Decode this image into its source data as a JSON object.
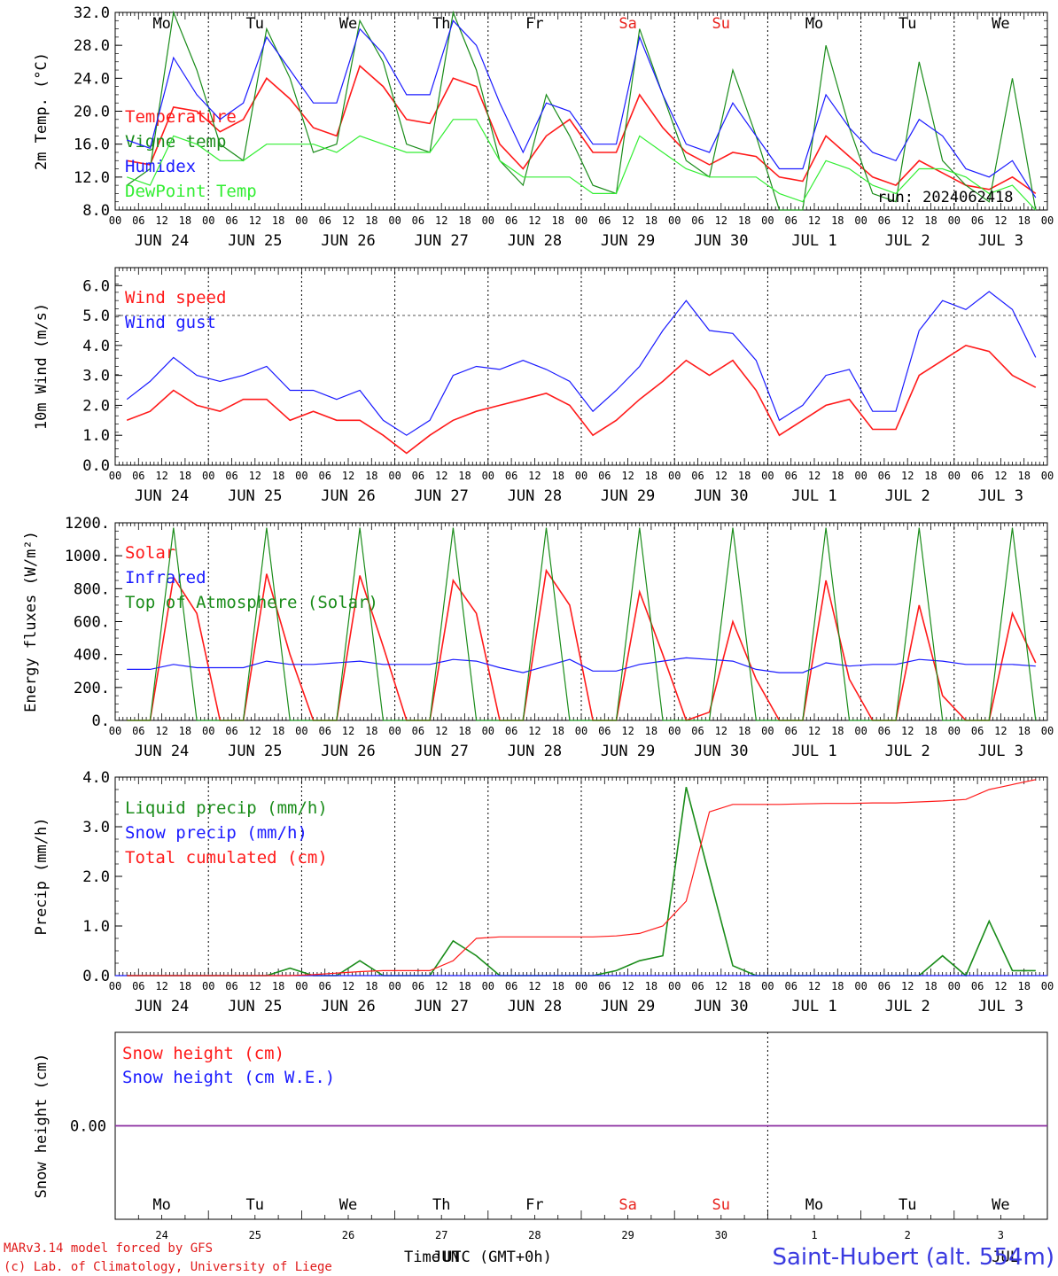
{
  "hour_ticks": [
    "00",
    "06",
    "12",
    "18"
  ],
  "dates": [
    "JUN 24",
    "JUN 25",
    "JUN 26",
    "JUN 27",
    "JUN 28",
    "JUN 29",
    "JUN 30",
    "JUL  1",
    "JUL  2",
    "JUL  3"
  ],
  "weekdays": [
    "Mo",
    "Tu",
    "We",
    "Th",
    "Fr",
    "Sa",
    "Su",
    "Mo",
    "Tu",
    "We"
  ],
  "weekend_color": "#e8231e",
  "bottom_day_numbers": [
    "24",
    "25",
    "26",
    "27",
    "28",
    "29",
    "30",
    "1",
    "2",
    "3"
  ],
  "bottom_month_labels": [
    "JUN",
    "JUL"
  ],
  "run_label": "run: 2024062418",
  "colors": {
    "red": "#ff1a1a",
    "darkgreen": "#1a8c1a",
    "blue": "#1a1aff",
    "lightgreen": "#33ee33",
    "purple": "#8a2ca0"
  },
  "footer": {
    "model": "MARv3.14 model forced by GFS",
    "lab": "(c) Lab. of Climatology, University of Liege",
    "xlabel_time": "Time",
    "xlabel_utc": "UTC (GMT+0h)",
    "station": "Saint-Hubert (alt. 554m)"
  },
  "chart_data": [
    {
      "type": "line",
      "ylabel": "2m Temp. (°C)",
      "ylim": [
        8,
        32
      ],
      "yticks": [
        "8.0",
        "12.0",
        "16.0",
        "20.0",
        "24.0",
        "28.0",
        "32.0"
      ],
      "x": "hours since JUN 24 00 UTC, step 6",
      "series": [
        {
          "name": "Temperature",
          "color": "red",
          "values": [
            14,
            13.5,
            20.5,
            20,
            17.5,
            19,
            24,
            21.5,
            18,
            17,
            25.5,
            23,
            19,
            18.5,
            24,
            23,
            16,
            13,
            17,
            19,
            15,
            15,
            22,
            18,
            15,
            13.5,
            15,
            14.5,
            12,
            11.5,
            17,
            14.5,
            12,
            11,
            14,
            12.5,
            11,
            10.5,
            12,
            10
          ]
        },
        {
          "name": "Vigne temp",
          "color": "darkgreen",
          "values": [
            11,
            13,
            32,
            25,
            16,
            14,
            30,
            24,
            15,
            16,
            31,
            26,
            16,
            15,
            32,
            25,
            14,
            11,
            22,
            17,
            11,
            10,
            30,
            22,
            14,
            12,
            25,
            17,
            8,
            8,
            28,
            18,
            10,
            9,
            26,
            14,
            11,
            9,
            24,
            8
          ]
        },
        {
          "name": "Humidex",
          "color": "blue",
          "values": [
            16.5,
            15.5,
            26.5,
            22,
            19,
            21,
            29,
            25,
            21,
            21,
            30,
            27,
            22,
            22,
            31,
            28,
            21,
            15,
            21,
            20,
            16,
            16,
            29,
            22,
            16,
            15,
            21,
            17,
            13,
            13,
            22,
            18,
            15,
            14,
            19,
            17,
            13,
            12,
            14,
            9.5
          ]
        },
        {
          "name": "DewPoint Temp",
          "color": "lightgreen",
          "values": [
            12,
            11,
            17,
            16,
            14,
            14,
            16,
            16,
            16,
            15,
            17,
            16,
            15,
            15,
            19,
            19,
            14,
            12,
            12,
            12,
            10,
            10,
            17,
            15,
            13,
            12,
            12,
            12,
            10,
            9,
            14,
            13,
            11,
            10,
            13,
            13,
            12,
            10,
            11,
            8
          ]
        }
      ]
    },
    {
      "type": "line",
      "ylabel": "10m Wind (m/s)",
      "ylim": [
        0,
        6.6
      ],
      "yticks": [
        "0.0",
        "1.0",
        "2.0",
        "3.0",
        "4.0",
        "5.0",
        "6.0"
      ],
      "series": [
        {
          "name": "Wind speed",
          "color": "red",
          "values": [
            1.5,
            1.8,
            2.5,
            2,
            1.8,
            2.2,
            2.2,
            1.5,
            1.8,
            1.5,
            1.5,
            1,
            0.4,
            1,
            1.5,
            1.8,
            2,
            2.2,
            2.4,
            2,
            1,
            1.5,
            2.2,
            2.8,
            3.5,
            3,
            3.5,
            2.5,
            1,
            1.5,
            2,
            2.2,
            1.2,
            1.2,
            3,
            3.5,
            4,
            3.8,
            3,
            2.6
          ]
        },
        {
          "name": "Wind gust",
          "color": "blue",
          "values": [
            2.2,
            2.8,
            3.6,
            3,
            2.8,
            3,
            3.3,
            2.5,
            2.5,
            2.2,
            2.5,
            1.5,
            1,
            1.5,
            3,
            3.3,
            3.2,
            3.5,
            3.2,
            2.8,
            1.8,
            2.5,
            3.3,
            4.5,
            5.5,
            4.5,
            4.4,
            3.5,
            1.5,
            2,
            3,
            3.2,
            1.8,
            1.8,
            4.5,
            5.5,
            5.2,
            5.8,
            5.2,
            3.6
          ]
        }
      ]
    },
    {
      "type": "line",
      "ylabel": "Energy fluxes (W/m²)",
      "ylim": [
        0,
        1200
      ],
      "yticks": [
        "0.",
        "200.",
        "400.",
        "600.",
        "800.",
        "1000.",
        "1200."
      ],
      "series": [
        {
          "name": "Solar",
          "color": "red",
          "values": [
            0,
            0,
            870,
            650,
            0,
            0,
            890,
            400,
            0,
            0,
            880,
            450,
            0,
            0,
            850,
            650,
            0,
            0,
            910,
            700,
            0,
            0,
            780,
            400,
            0,
            50,
            600,
            250,
            0,
            0,
            850,
            250,
            0,
            0,
            700,
            150,
            0,
            0,
            650,
            350
          ]
        },
        {
          "name": "Infrared",
          "color": "blue",
          "values": [
            310,
            310,
            340,
            320,
            320,
            320,
            360,
            340,
            340,
            350,
            360,
            340,
            340,
            340,
            370,
            360,
            320,
            290,
            330,
            370,
            300,
            300,
            340,
            360,
            380,
            370,
            360,
            310,
            290,
            290,
            350,
            330,
            340,
            340,
            370,
            360,
            340,
            340,
            340,
            330
          ]
        },
        {
          "name": "Top of Atmosphere (Solar)",
          "color": "darkgreen",
          "values": [
            0,
            0,
            1170,
            0,
            0,
            0,
            1170,
            0,
            0,
            0,
            1170,
            0,
            0,
            0,
            1170,
            0,
            0,
            0,
            1170,
            0,
            0,
            0,
            1170,
            0,
            0,
            0,
            1170,
            0,
            0,
            0,
            1170,
            0,
            0,
            0,
            1170,
            0,
            0,
            0,
            1170,
            0
          ]
        }
      ]
    },
    {
      "type": "line",
      "ylabel": "Precip (mm/h)",
      "ylim": [
        0,
        4
      ],
      "yticks": [
        "0.0",
        "1.0",
        "2.0",
        "3.0",
        "4.0"
      ],
      "series": [
        {
          "name": "Liquid precip (mm/h)",
          "color": "darkgreen",
          "values": [
            0,
            0,
            0,
            0,
            0,
            0,
            0,
            0.15,
            0,
            0,
            0.3,
            0,
            0,
            0,
            0.7,
            0.4,
            0,
            0,
            0,
            0,
            0,
            0.1,
            0.3,
            0.4,
            3.8,
            2,
            0.2,
            0,
            0,
            0,
            0,
            0,
            0,
            0,
            0,
            0.4,
            0,
            1.1,
            0.1,
            0.1
          ]
        },
        {
          "name": "Snow precip (mm/h)",
          "color": "blue",
          "values": [
            0,
            0,
            0,
            0,
            0,
            0,
            0,
            0,
            0,
            0,
            0,
            0,
            0,
            0,
            0,
            0,
            0,
            0,
            0,
            0,
            0,
            0,
            0,
            0,
            0,
            0,
            0,
            0,
            0,
            0,
            0,
            0,
            0,
            0,
            0,
            0,
            0,
            0,
            0,
            0
          ]
        },
        {
          "name": "Total cumulated (cm)",
          "color": "red",
          "values": [
            0,
            0,
            0,
            0,
            0,
            0,
            0,
            0,
            0.02,
            0.05,
            0.08,
            0.1,
            0.1,
            0.1,
            0.3,
            0.75,
            0.78,
            0.78,
            0.78,
            0.78,
            0.78,
            0.8,
            0.85,
            1,
            1.5,
            3.3,
            3.45,
            3.45,
            3.45,
            3.46,
            3.47,
            3.47,
            3.48,
            3.48,
            3.5,
            3.52,
            3.55,
            3.75,
            3.85,
            3.95
          ]
        }
      ]
    },
    {
      "type": "line",
      "ylabel": "Snow height (cm)",
      "yticks": [
        "0.00"
      ],
      "series": [
        {
          "name": "Snow height (cm)",
          "color": "red",
          "values": [
            0,
            0
          ]
        },
        {
          "name": "Snow height (cm W.E.)",
          "color": "blue",
          "values": [
            0,
            0
          ]
        }
      ]
    }
  ]
}
